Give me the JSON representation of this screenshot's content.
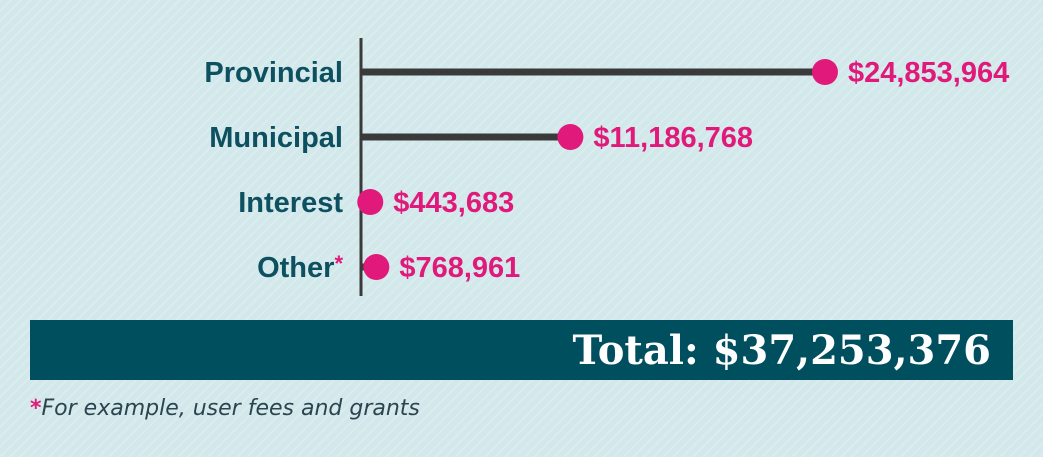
{
  "chart_data": {
    "type": "lollipop",
    "categories": [
      "Provincial",
      "Municipal",
      "Interest",
      "Other"
    ],
    "category_markers": [
      "",
      "",
      "",
      "*"
    ],
    "values": [
      24853964,
      11186768,
      443683,
      768961
    ],
    "value_labels": [
      "$24,853,964",
      "$11,186,768",
      "$443,683",
      "$768,961"
    ],
    "xlim": [
      0,
      25500000
    ],
    "colors": {
      "stem": "#3a3a3a",
      "dot": "#e0197a",
      "category_text": "#0d5060",
      "value_text": "#e0197a"
    }
  },
  "total": {
    "label": "Total: $37,253,376",
    "background": "#004f5f"
  },
  "footnote": {
    "marker": "*",
    "text": "For example, user fees and grants"
  }
}
